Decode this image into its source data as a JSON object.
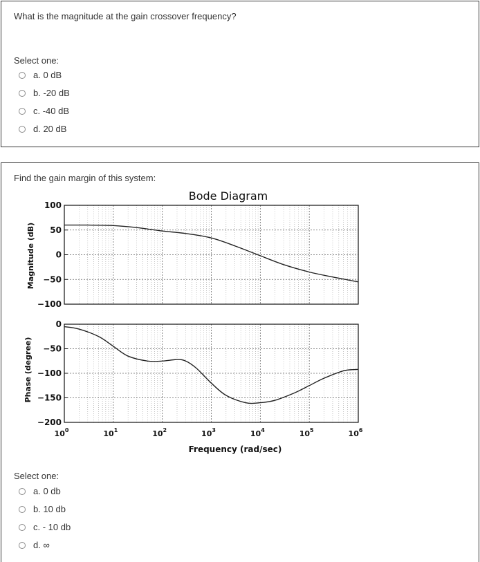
{
  "question1": {
    "text": "What is the magnitude at the gain crossover frequency?",
    "select_label": "Select one:",
    "options": [
      "a. 0 dB",
      "b. -20 dB",
      "c. -40 dB",
      "d. 20 dB"
    ]
  },
  "question2": {
    "text": "Find the gain margin of this system:",
    "select_label": "Select one:",
    "options": [
      "a. 0 db",
      "b. 10 db",
      "c. - 10 db",
      "d. ∞"
    ]
  },
  "chart_data": {
    "type": "line",
    "title": "Bode Diagram",
    "xlabel": "Frequency (rad/sec)",
    "x_scale": "log",
    "xlim": [
      1,
      1000000
    ],
    "x_tick_labels": [
      "10^0",
      "10^1",
      "10^2",
      "10^3",
      "10^4",
      "10^5",
      "10^6"
    ],
    "grid": true,
    "panels": [
      {
        "name": "magnitude",
        "ylabel": "Magnitude (dB)",
        "ylim": [
          -100,
          100
        ],
        "y_ticks": [
          100,
          50,
          0,
          -50,
          -100
        ],
        "series": [
          {
            "x": [
              1,
              3,
              10,
              30,
              100,
              300,
              1000,
              3000,
              10000,
              30000,
              100000,
              300000,
              1000000
            ],
            "y": [
              60,
              60,
              59,
              55,
              48,
              43,
              34,
              18,
              -2,
              -20,
              -35,
              -45,
              -55
            ]
          }
        ]
      },
      {
        "name": "phase",
        "ylabel": "Phase (degree)",
        "ylim": [
          -200,
          0
        ],
        "y_ticks": [
          0,
          -50,
          -100,
          -150,
          -200
        ],
        "series": [
          {
            "x": [
              1,
              2,
              5,
              10,
              20,
              50,
              100,
              200,
              300,
              500,
              1000,
              2000,
              5000,
              10000,
              20000,
              50000,
              100000,
              200000,
              500000,
              1000000
            ],
            "y": [
              -5,
              -10,
              -25,
              -45,
              -65,
              -75,
              -75,
              -72,
              -75,
              -90,
              -120,
              -145,
              -160,
              -160,
              -155,
              -140,
              -125,
              -110,
              -95,
              -92
            ]
          }
        ]
      }
    ]
  }
}
